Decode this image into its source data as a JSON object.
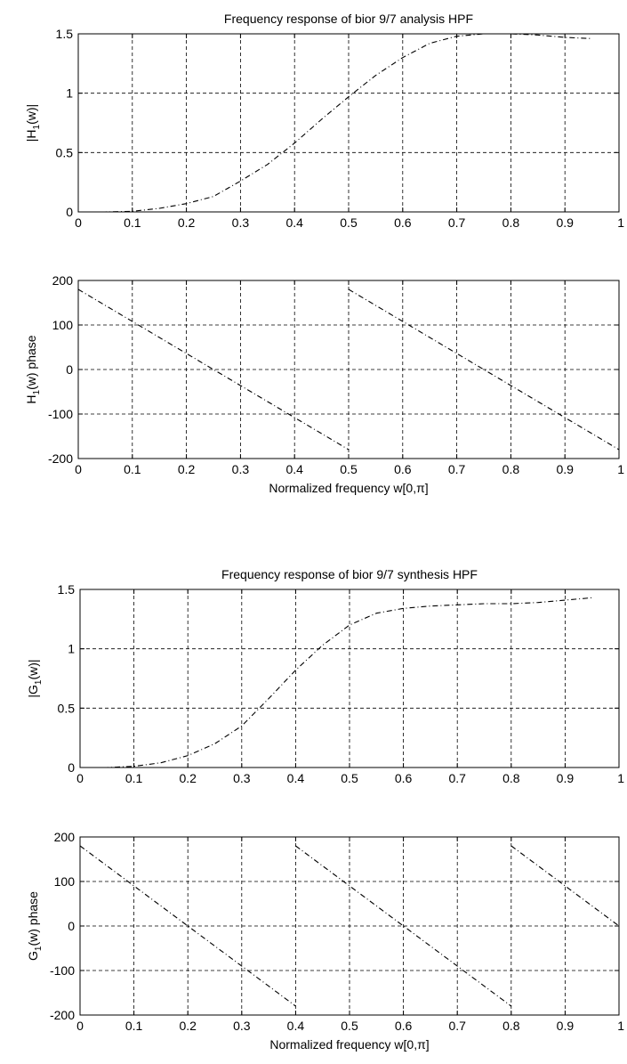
{
  "chart_data": [
    {
      "type": "line",
      "title": "Frequency response of bior 9/7 analysis HPF",
      "xlabel": "",
      "ylabel_main": "|H",
      "ylabel_sub": "1",
      "ylabel_tail": "(w)|",
      "xlim": [
        0,
        1
      ],
      "ylim": [
        0,
        1.5
      ],
      "grid": true,
      "xticks": [
        "0",
        "0.1",
        "0.2",
        "0.3",
        "0.4",
        "0.5",
        "0.6",
        "0.7",
        "0.8",
        "0.9",
        "1"
      ],
      "yticks": [
        "0",
        "0.5",
        "1",
        "1.5"
      ],
      "x": [
        0,
        0.05,
        0.1,
        0.15,
        0.2,
        0.25,
        0.3,
        0.35,
        0.4,
        0.45,
        0.5,
        0.55,
        0.6,
        0.65,
        0.7,
        0.75,
        0.8,
        0.85,
        0.9,
        0.95
      ],
      "y": [
        0,
        0,
        0.005,
        0.03,
        0.07,
        0.13,
        0.26,
        0.4,
        0.58,
        0.78,
        0.97,
        1.15,
        1.3,
        1.42,
        1.48,
        1.5,
        1.5,
        1.49,
        1.47,
        1.46
      ]
    },
    {
      "type": "line",
      "title": "",
      "xlabel": "Normalized frequency w[0,π]",
      "ylabel_main": "H",
      "ylabel_sub": "1",
      "ylabel_tail": "(w) phase",
      "xlim": [
        0,
        1
      ],
      "ylim": [
        -200,
        200
      ],
      "grid": true,
      "xticks": [
        "0",
        "0.1",
        "0.2",
        "0.3",
        "0.4",
        "0.5",
        "0.6",
        "0.7",
        "0.8",
        "0.9",
        "1"
      ],
      "yticks": [
        "-200",
        "-100",
        "0",
        "100",
        "200"
      ],
      "segments": [
        {
          "x": [
            0,
            0.5
          ],
          "y": [
            180,
            -180
          ]
        },
        {
          "x": [
            0.5,
            1.0
          ],
          "y": [
            180,
            -180
          ]
        }
      ]
    },
    {
      "type": "line",
      "title": "Frequency response of bior 9/7 synthesis HPF",
      "xlabel": "",
      "ylabel_main": "|G",
      "ylabel_sub": "1",
      "ylabel_tail": "(w)|",
      "xlim": [
        0,
        1
      ],
      "ylim": [
        0,
        1.5
      ],
      "grid": true,
      "xticks": [
        "0",
        "0.1",
        "0.2",
        "0.3",
        "0.4",
        "0.5",
        "0.6",
        "0.7",
        "0.8",
        "0.9",
        "1"
      ],
      "yticks": [
        "0",
        "0.5",
        "1",
        "1.5"
      ],
      "x": [
        0,
        0.05,
        0.1,
        0.15,
        0.2,
        0.25,
        0.3,
        0.35,
        0.4,
        0.45,
        0.5,
        0.55,
        0.6,
        0.65,
        0.7,
        0.75,
        0.8,
        0.85,
        0.9,
        0.95
      ],
      "y": [
        0,
        0,
        0.01,
        0.04,
        0.1,
        0.2,
        0.35,
        0.58,
        0.82,
        1.03,
        1.2,
        1.3,
        1.34,
        1.36,
        1.37,
        1.38,
        1.38,
        1.39,
        1.41,
        1.43
      ]
    },
    {
      "type": "line",
      "title": "",
      "xlabel": "Normalized frequency w[0,π]",
      "ylabel_main": "G",
      "ylabel_sub": "1",
      "ylabel_tail": "(w) phase",
      "xlim": [
        0,
        1
      ],
      "ylim": [
        -200,
        200
      ],
      "grid": true,
      "xticks": [
        "0",
        "0.1",
        "0.2",
        "0.3",
        "0.4",
        "0.5",
        "0.6",
        "0.7",
        "0.8",
        "0.9",
        "1"
      ],
      "yticks": [
        "-200",
        "-100",
        "0",
        "100",
        "200"
      ],
      "segments": [
        {
          "x": [
            0,
            0.4
          ],
          "y": [
            180,
            -180
          ]
        },
        {
          "x": [
            0.4,
            0.8
          ],
          "y": [
            180,
            -180
          ]
        },
        {
          "x": [
            0.8,
            1.0
          ],
          "y": [
            180,
            0
          ]
        }
      ]
    }
  ]
}
